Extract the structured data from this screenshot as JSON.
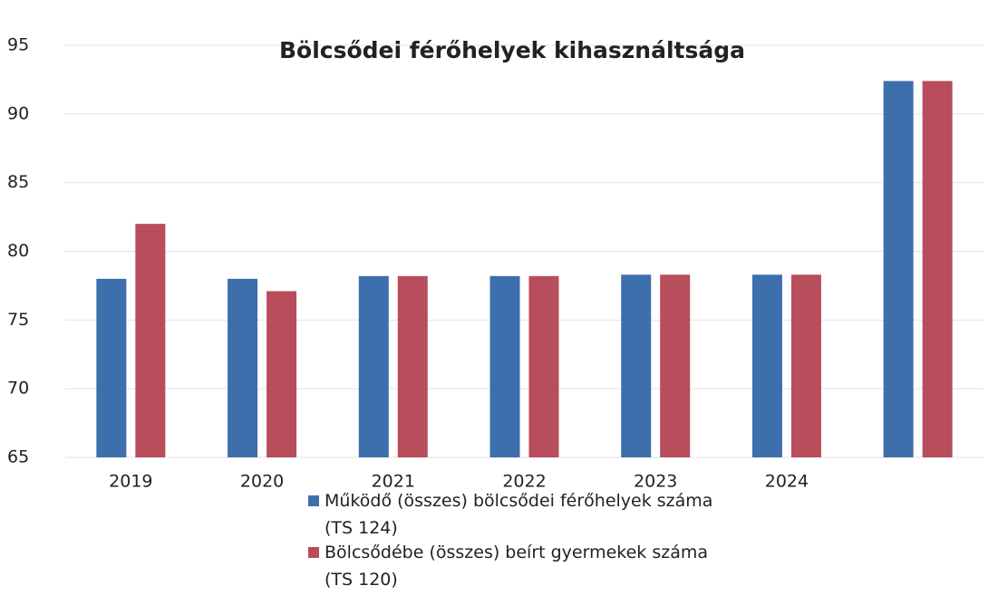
{
  "chart_data": {
    "type": "bar",
    "title": "Bölcsődei férőhelyek kihasználtsága",
    "categories": [
      "2019",
      "2020",
      "2021",
      "2022",
      "2023",
      "2024",
      null
    ],
    "series": [
      {
        "name": "Működő (összes) bölcsődei férőhelyek száma (TS 124)",
        "color": "#3e6fad",
        "values": [
          78,
          78,
          78.2,
          78.2,
          78.3,
          78.3,
          92.4
        ]
      },
      {
        "name": "Bölcsődébe (összes) beírt gyermekek száma (TS 120)",
        "color": "#b84d5c",
        "values": [
          82,
          77.1,
          78.2,
          78.2,
          78.3,
          78.3,
          92.4
        ]
      }
    ],
    "ylim": [
      65,
      95
    ],
    "yticks": [
      65,
      70,
      75,
      80,
      85,
      90,
      95
    ],
    "grid": true,
    "legend": "bottom"
  }
}
